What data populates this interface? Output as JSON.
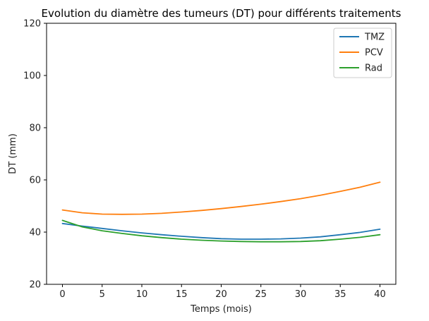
{
  "chart_data": {
    "type": "line",
    "title": "Evolution du diamètre des tumeurs (DT) pour différents traitements",
    "xlabel": "Temps (mois)",
    "ylabel": "DT (mm)",
    "xlim": [
      -2,
      42
    ],
    "ylim": [
      20,
      120
    ],
    "xticks": [
      0,
      5,
      10,
      15,
      20,
      25,
      30,
      35,
      40
    ],
    "yticks": [
      20,
      40,
      60,
      80,
      100,
      120
    ],
    "grid": false,
    "legend_position": "top-right",
    "x": [
      0,
      2.5,
      5,
      7.5,
      10,
      12.5,
      15,
      17.5,
      20,
      22.5,
      25,
      27.5,
      30,
      32.5,
      35,
      37.5,
      40
    ],
    "series": [
      {
        "name": "TMZ",
        "color": "#1f77b4",
        "values": [
          43.3,
          42.3,
          41.4,
          40.5,
          39.7,
          39.0,
          38.4,
          37.9,
          37.5,
          37.3,
          37.3,
          37.4,
          37.7,
          38.2,
          39.0,
          39.9,
          41.1
        ]
      },
      {
        "name": "PCV",
        "color": "#ff7f0e",
        "values": [
          48.5,
          47.4,
          46.9,
          46.8,
          46.9,
          47.2,
          47.7,
          48.3,
          49.0,
          49.8,
          50.7,
          51.7,
          52.8,
          54.1,
          55.6,
          57.2,
          59.1
        ]
      },
      {
        "name": "Rad",
        "color": "#2ca02c",
        "values": [
          44.5,
          42.0,
          40.5,
          39.5,
          38.6,
          37.9,
          37.3,
          36.9,
          36.6,
          36.4,
          36.3,
          36.3,
          36.4,
          36.7,
          37.3,
          38.0,
          39.0
        ]
      }
    ]
  }
}
